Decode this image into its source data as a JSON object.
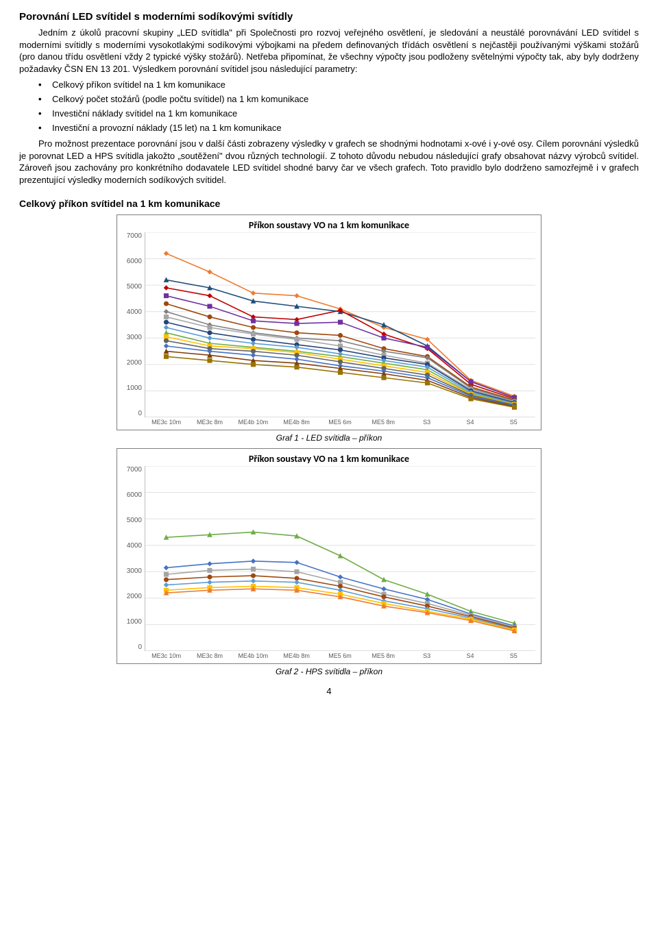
{
  "heading": "Porovnání LED svítidel s moderními sodíkovými svítidly",
  "p1": "Jedním z úkolů pracovní skupiny „LED svítidla\" při Společnosti pro rozvoj veřejného osvětlení, je sledování a neustálé porovnávání LED svítidel s moderními svítidly s moderními vysokotlakými sodíkovými výbojkami na předem definovaných třídách osvětlení s nejčastěji používanými výškami stožárů (pro danou třídu osvětlení vždy 2 typické výšky stožárů). Netřeba připomínat, že všechny výpočty jsou podloženy světelnými výpočty tak, aby byly dodrženy požadavky ČSN EN 13 201. Výsledkem porovnání svítidel jsou následující parametry:",
  "bullets": [
    "Celkový příkon svítidel na 1 km komunikace",
    "Celkový počet stožárů (podle počtu svítidel) na 1 km komunikace",
    "Investiční náklady svítidel na 1 km komunikace",
    "Investiční a provozní náklady (15 let) na 1 km komunikace"
  ],
  "p2": "Pro možnost prezentace porovnání jsou v další části zobrazeny výsledky v grafech se shodnými hodnotami x-ové i y-ové osy. Cílem porovnání výsledků je porovnat LED a HPS svítidla jakožto „soutěžení\" dvou různých technologií. Z tohoto důvodu nebudou následující grafy obsahovat názvy výrobců svítidel. Zároveň jsou zachovány pro konkrétního dodavatele LED svítidel shodné barvy čar ve všech grafech. Toto pravidlo bylo dodrženo samozřejmě i v grafech prezentující výsledky moderních sodíkových svítidel.",
  "h2": "Celkový příkon svítidel na 1 km komunikace",
  "caption1": "Graf 1 - LED svítidla – příkon",
  "caption2": "Graf 2 - HPS svítidla – příkon",
  "page": "4",
  "chart_common": {
    "title": "Příkon soustavy VO na 1 km komunikace",
    "x_categories": [
      "ME3c 10m",
      "ME3c 8m",
      "ME4b 10m",
      "ME4b 8m",
      "ME5 6m",
      "ME5 8m",
      "S3",
      "S4",
      "S5"
    ],
    "y_ticks": [
      0,
      1000,
      2000,
      3000,
      4000,
      5000,
      6000,
      7000
    ],
    "ylim": [
      0,
      7000
    ],
    "background_color": "#ffffff",
    "grid_color": "#e0e0e0",
    "axis_color": "#bfbfbf",
    "tick_font_color": "#595959",
    "tick_fontsize": 10,
    "title_fontsize": 14,
    "line_width": 1.6,
    "marker_radius": 3
  },
  "chart1": {
    "type": "line",
    "series": [
      {
        "color": "#ed7d31",
        "marker": "diamond",
        "values": [
          6200,
          5500,
          4700,
          4600,
          4100,
          3400,
          2950,
          1400,
          800
        ]
      },
      {
        "color": "#1f4e79",
        "marker": "triangle",
        "values": [
          5200,
          4900,
          4400,
          4200,
          4000,
          3500,
          2700,
          1350,
          750
        ]
      },
      {
        "color": "#c00000",
        "marker": "diamond",
        "values": [
          4900,
          4600,
          3800,
          3700,
          4050,
          3150,
          2600,
          1250,
          700
        ]
      },
      {
        "color": "#7030a0",
        "marker": "square",
        "values": [
          4600,
          4200,
          3650,
          3550,
          3600,
          3000,
          2650,
          1350,
          750
        ]
      },
      {
        "color": "#9e480e",
        "marker": "circle",
        "values": [
          4300,
          3800,
          3400,
          3200,
          3100,
          2600,
          2300,
          1150,
          650
        ]
      },
      {
        "color": "#808080",
        "marker": "diamond",
        "values": [
          4000,
          3500,
          3200,
          3000,
          2900,
          2500,
          2250,
          1100,
          620
        ]
      },
      {
        "color": "#a5a5a5",
        "marker": "square",
        "values": [
          3800,
          3400,
          3150,
          2950,
          2700,
          2350,
          2050,
          1050,
          580
        ]
      },
      {
        "color": "#264478",
        "marker": "circle",
        "values": [
          3600,
          3200,
          2950,
          2750,
          2550,
          2250,
          2000,
          1000,
          560
        ]
      },
      {
        "color": "#5b9bd5",
        "marker": "diamond",
        "values": [
          3400,
          3000,
          2800,
          2650,
          2400,
          2150,
          1900,
          950,
          530
        ]
      },
      {
        "color": "#70ad47",
        "marker": "triangle",
        "values": [
          3200,
          2800,
          2650,
          2500,
          2300,
          2050,
          1800,
          900,
          500
        ]
      },
      {
        "color": "#ffc000",
        "marker": "square",
        "values": [
          3050,
          2700,
          2600,
          2450,
          2200,
          1950,
          1700,
          870,
          490
        ]
      },
      {
        "color": "#636363",
        "marker": "circle",
        "values": [
          2900,
          2600,
          2500,
          2350,
          2100,
          1850,
          1600,
          840,
          470
        ]
      },
      {
        "color": "#4472c4",
        "marker": "diamond",
        "values": [
          2700,
          2500,
          2350,
          2200,
          1950,
          1750,
          1500,
          800,
          440
        ]
      },
      {
        "color": "#843c0c",
        "marker": "triangle",
        "values": [
          2500,
          2350,
          2150,
          2050,
          1850,
          1650,
          1400,
          750,
          410
        ]
      },
      {
        "color": "#997300",
        "marker": "square",
        "values": [
          2300,
          2150,
          2000,
          1900,
          1700,
          1500,
          1300,
          700,
          380
        ]
      }
    ]
  },
  "chart2": {
    "type": "line",
    "series": [
      {
        "color": "#70ad47",
        "marker": "triangle",
        "values": [
          4300,
          4400,
          4500,
          4350,
          3600,
          2700,
          2150,
          1500,
          1050
        ]
      },
      {
        "color": "#4472c4",
        "marker": "diamond",
        "values": [
          3150,
          3300,
          3400,
          3350,
          2800,
          2350,
          1950,
          1400,
          950
        ]
      },
      {
        "color": "#a5a5a5",
        "marker": "square",
        "values": [
          2900,
          3050,
          3100,
          3000,
          2600,
          2150,
          1800,
          1350,
          900
        ]
      },
      {
        "color": "#9e480e",
        "marker": "circle",
        "values": [
          2700,
          2800,
          2850,
          2750,
          2450,
          2050,
          1700,
          1300,
          870
        ]
      },
      {
        "color": "#5b9bd5",
        "marker": "diamond",
        "values": [
          2500,
          2600,
          2650,
          2600,
          2300,
          1900,
          1600,
          1250,
          830
        ]
      },
      {
        "color": "#ffc000",
        "marker": "square",
        "values": [
          2300,
          2400,
          2450,
          2400,
          2150,
          1800,
          1500,
          1200,
          800
        ]
      },
      {
        "color": "#ed7d31",
        "marker": "triangle",
        "values": [
          2200,
          2300,
          2350,
          2300,
          2050,
          1700,
          1450,
          1150,
          760
        ]
      }
    ]
  }
}
